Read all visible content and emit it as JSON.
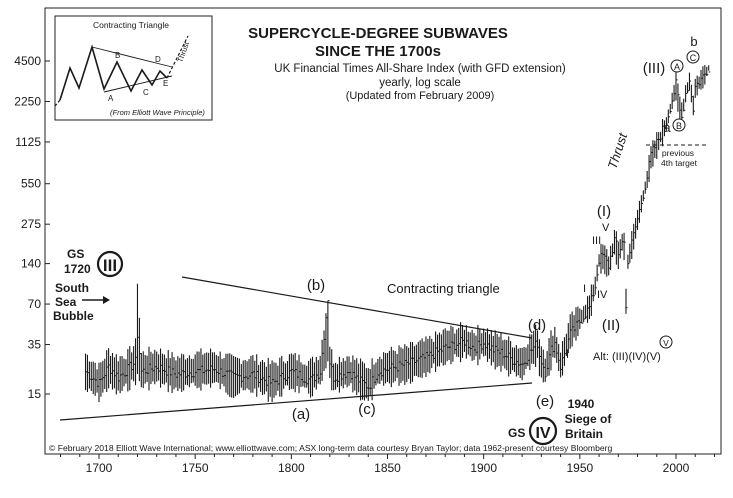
{
  "chart_data": {
    "type": "line",
    "title": "SUPERCYCLE-DEGREE SUBWAVES",
    "title_line2": "SINCE THE 1700s",
    "subtitle_lines": [
      "UK Financial Times All-Share Index (with GFD extension)",
      "yearly, log scale",
      "(Updated from February 2009)"
    ],
    "y_scale": "log",
    "y_ticks": [
      15,
      35,
      70,
      140,
      275,
      550,
      1125,
      2250,
      4500
    ],
    "y_tick_labels": [
      "15",
      "35",
      "70",
      "140",
      "275",
      "550",
      "1125",
      "2250",
      "4500"
    ],
    "ylim": [
      8.5,
      6800
    ],
    "x_ticks": [
      1700,
      1750,
      1800,
      1850,
      1900,
      1950,
      2000
    ],
    "x_tick_labels": [
      "1700",
      "1750",
      "1800",
      "1850",
      "1900",
      "1950",
      "2000"
    ],
    "xlim": [
      1678,
      2025
    ],
    "grid": false,
    "series": [
      {
        "x": [
          1693,
          1700,
          1705,
          1710,
          1715,
          1719,
          1720,
          1722,
          1730,
          1740,
          1750,
          1760,
          1770,
          1780,
          1790,
          1800,
          1810,
          1815,
          1819,
          1820,
          1822,
          1830,
          1835,
          1840,
          1845,
          1850,
          1860,
          1870,
          1880,
          1890,
          1895,
          1900,
          1905,
          1910,
          1915,
          1920,
          1925,
          1928,
          1929,
          1932,
          1935,
          1937,
          1940,
          1945,
          1950,
          1955,
          1958,
          1960,
          1962,
          1965,
          1968,
          1969,
          1970,
          1972,
          1973,
          1974,
          1975,
          1980,
          1985,
          1987,
          1990,
          1995,
          2000,
          2002,
          2003,
          2005,
          2007,
          2009,
          2010,
          2013,
          2015,
          2017
        ],
        "values": [
          22,
          18,
          24,
          20,
          23,
          26,
          42,
          22,
          24,
          21,
          22,
          23,
          20,
          21,
          18,
          22,
          19,
          22,
          78,
          26,
          20,
          22,
          19,
          17,
          22,
          23,
          25,
          28,
          33,
          37,
          33,
          36,
          32,
          30,
          27,
          25,
          32,
          36,
          29,
          22,
          32,
          36,
          24,
          42,
          52,
          66,
          95,
          150,
          160,
          135,
          210,
          190,
          160,
          210,
          200,
          65,
          150,
          300,
          620,
          900,
          1100,
          1600,
          3000,
          1900,
          1700,
          2600,
          3200,
          2000,
          2900,
          3300,
          3600,
          4100
        ],
        "low": [
          16,
          14,
          17,
          15,
          17,
          19,
          20,
          17,
          18,
          16,
          17,
          18,
          15,
          16,
          14,
          17,
          15,
          17,
          25,
          19,
          15,
          17,
          15,
          13,
          17,
          18,
          19,
          22,
          26,
          29,
          26,
          28,
          25,
          23,
          21,
          19,
          25,
          26,
          20,
          17,
          24,
          28,
          19,
          35,
          45,
          55,
          80,
          125,
          130,
          110,
          170,
          150,
          130,
          170,
          150,
          60,
          120,
          250,
          500,
          750,
          900,
          1300,
          2500,
          1600,
          1400,
          2200,
          2700,
          1700,
          2400,
          2800,
          3000,
          3500
        ],
        "high": [
          30,
          24,
          32,
          28,
          30,
          36,
          105,
          30,
          32,
          28,
          30,
          31,
          27,
          28,
          25,
          29,
          26,
          30,
          78,
          35,
          27,
          29,
          26,
          24,
          29,
          31,
          33,
          37,
          44,
          48,
          44,
          47,
          42,
          40,
          36,
          33,
          42,
          48,
          39,
          30,
          42,
          47,
          32,
          55,
          66,
          80,
          115,
          175,
          190,
          165,
          240,
          225,
          200,
          240,
          235,
          90,
          175,
          350,
          700,
          1000,
          1250,
          1800,
          3500,
          2400,
          2200,
          3000,
          3700,
          2600,
          3300,
          3800,
          4200,
          4600
        ]
      }
    ],
    "annotations": {
      "gs_label": "GS",
      "gs_year": "1720",
      "wave_III_roman": "III",
      "wave_IV_roman": "IV",
      "south": "South",
      "sea": "Sea",
      "bubble": "Bubble",
      "wave_a": "(a)",
      "wave_b": "(b)",
      "wave_c": "(c)",
      "wave_d": "(d)",
      "wave_e": "(e)",
      "contracting_triangle": "Contracting triangle",
      "siege_year": "1940",
      "siege_of": "Siege of",
      "britain": "Britain",
      "wave_I": "(I)",
      "wave_II": "(II)",
      "wave_III": "(III)",
      "small_I": "I",
      "small_II": "II",
      "small_III": "III",
      "small_IV": "IV",
      "small_V": "V",
      "thrust": "Thrust",
      "circ_A": "A",
      "circ_B": "B",
      "circ_C": "C",
      "circ_V": "V",
      "wave_small_a": "a",
      "wave_small_b": "b",
      "previous": "previous",
      "fourth_target": "4th target",
      "alt": "Alt: (III)(IV)(V)",
      "footer": "© February 2018 Elliott Wave International; www.elliottwave.com; ASX long-term data courtesy Bryan Taylor; data 1962-present courtesy Bloomberg"
    },
    "inset": {
      "title": "Contracting Triangle",
      "labels": [
        "A",
        "B",
        "C",
        "D",
        "E"
      ],
      "thrust": "Thrust",
      "source": "(From Elliott Wave Principle)"
    }
  }
}
